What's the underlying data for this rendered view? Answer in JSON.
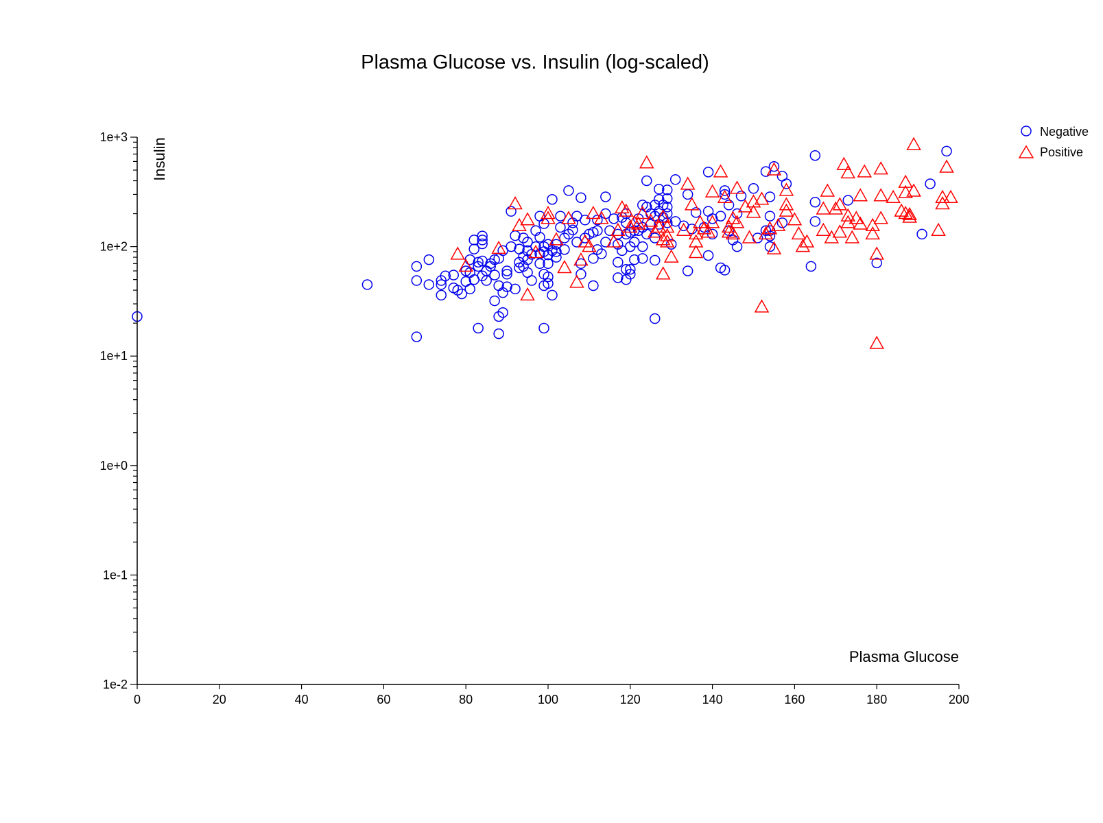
{
  "chart_data": {
    "type": "scatter",
    "title": "Plasma Glucose vs. Insulin (log-scaled)",
    "xlabel": "Plasma Glucose",
    "ylabel": "Insulin",
    "xlim": [
      0,
      200
    ],
    "ylim": [
      0.01,
      1000
    ],
    "y_scale": "log",
    "x_ticks": [
      0,
      20,
      40,
      60,
      80,
      100,
      120,
      140,
      160,
      180,
      200
    ],
    "y_ticks": [
      {
        "value": 0.01,
        "label": "1e-2"
      },
      {
        "value": 0.1,
        "label": "1e-1"
      },
      {
        "value": 1,
        "label": "1e+0"
      },
      {
        "value": 10,
        "label": "1e+1"
      },
      {
        "value": 100,
        "label": "1e+2"
      },
      {
        "value": 1000,
        "label": "1e+3"
      }
    ],
    "grid": false,
    "legend_position": "top-right",
    "series": [
      {
        "name": "Negative",
        "marker": "circle",
        "color": "#0000ee",
        "points": [
          [
            0,
            23
          ],
          [
            56,
            45
          ],
          [
            68,
            66
          ],
          [
            68,
            49
          ],
          [
            68,
            15
          ],
          [
            71,
            76
          ],
          [
            71,
            45
          ],
          [
            74,
            45
          ],
          [
            74,
            36
          ],
          [
            74,
            49
          ],
          [
            75,
            54
          ],
          [
            77,
            55
          ],
          [
            77,
            42
          ],
          [
            78,
            40
          ],
          [
            79,
            37
          ],
          [
            80,
            60
          ],
          [
            80,
            48
          ],
          [
            81,
            41
          ],
          [
            81,
            58
          ],
          [
            81,
            76
          ],
          [
            82,
            95
          ],
          [
            82,
            115
          ],
          [
            82,
            50
          ],
          [
            83,
            72
          ],
          [
            83,
            66
          ],
          [
            83,
            18
          ],
          [
            84,
            125
          ],
          [
            84,
            115
          ],
          [
            84,
            106
          ],
          [
            84,
            74
          ],
          [
            84,
            54
          ],
          [
            85,
            49
          ],
          [
            85,
            60
          ],
          [
            86,
            70
          ],
          [
            86,
            66
          ],
          [
            87,
            76
          ],
          [
            87,
            55
          ],
          [
            87,
            32
          ],
          [
            88,
            78
          ],
          [
            88,
            44
          ],
          [
            88,
            23
          ],
          [
            88,
            16
          ],
          [
            89,
            38
          ],
          [
            89,
            25
          ],
          [
            89,
            92
          ],
          [
            90,
            60
          ],
          [
            90,
            56
          ],
          [
            90,
            43
          ],
          [
            91,
            210
          ],
          [
            91,
            100
          ],
          [
            92,
            126
          ],
          [
            92,
            41
          ],
          [
            93,
            95
          ],
          [
            93,
            72
          ],
          [
            93,
            64
          ],
          [
            94,
            120
          ],
          [
            94,
            81
          ],
          [
            94,
            66
          ],
          [
            95,
            110
          ],
          [
            95,
            92
          ],
          [
            95,
            76
          ],
          [
            95,
            58
          ],
          [
            96,
            85
          ],
          [
            96,
            49
          ],
          [
            97,
            140
          ],
          [
            97,
            100
          ],
          [
            98,
            190
          ],
          [
            98,
            122
          ],
          [
            98,
            86
          ],
          [
            98,
            70
          ],
          [
            99,
            162
          ],
          [
            99,
            100
          ],
          [
            99,
            90
          ],
          [
            99,
            56
          ],
          [
            99,
            44
          ],
          [
            99,
            18
          ],
          [
            100,
            105
          ],
          [
            100,
            84
          ],
          [
            100,
            70
          ],
          [
            100,
            53
          ],
          [
            100,
            46
          ],
          [
            101,
            270
          ],
          [
            101,
            92
          ],
          [
            101,
            36
          ],
          [
            102,
            105
          ],
          [
            102,
            90
          ],
          [
            102,
            80
          ],
          [
            103,
            190
          ],
          [
            103,
            150
          ],
          [
            104,
            120
          ],
          [
            104,
            94
          ],
          [
            105,
            325
          ],
          [
            105,
            130
          ],
          [
            106,
            165
          ],
          [
            106,
            142
          ],
          [
            107,
            190
          ],
          [
            107,
            110
          ],
          [
            108,
            280
          ],
          [
            108,
            70
          ],
          [
            108,
            56
          ],
          [
            109,
            175
          ],
          [
            109,
            120
          ],
          [
            110,
            130
          ],
          [
            111,
            135
          ],
          [
            111,
            78
          ],
          [
            111,
            44
          ],
          [
            112,
            175
          ],
          [
            112,
            140
          ],
          [
            112,
            94
          ],
          [
            113,
            86
          ],
          [
            114,
            285
          ],
          [
            114,
            200
          ],
          [
            114,
            110
          ],
          [
            115,
            140
          ],
          [
            116,
            180
          ],
          [
            117,
            130
          ],
          [
            117,
            105
          ],
          [
            117,
            72
          ],
          [
            117,
            52
          ],
          [
            118,
            185
          ],
          [
            118,
            92
          ],
          [
            119,
            200
          ],
          [
            119,
            165
          ],
          [
            119,
            130
          ],
          [
            119,
            62
          ],
          [
            119,
            50
          ],
          [
            120,
            135
          ],
          [
            120,
            100
          ],
          [
            120,
            62
          ],
          [
            120,
            56
          ],
          [
            121,
            140
          ],
          [
            121,
            110
          ],
          [
            121,
            76
          ],
          [
            122,
            180
          ],
          [
            122,
            140
          ],
          [
            123,
            240
          ],
          [
            123,
            150
          ],
          [
            123,
            100
          ],
          [
            123,
            78
          ],
          [
            124,
            400
          ],
          [
            124,
            230
          ],
          [
            124,
            130
          ],
          [
            125,
            200
          ],
          [
            125,
            160
          ],
          [
            126,
            240
          ],
          [
            126,
            190
          ],
          [
            126,
            120
          ],
          [
            126,
            75
          ],
          [
            126,
            22
          ],
          [
            127,
            335
          ],
          [
            127,
            270
          ],
          [
            127,
            210
          ],
          [
            127,
            160
          ],
          [
            128,
            240
          ],
          [
            128,
            185
          ],
          [
            129,
            330
          ],
          [
            129,
            275
          ],
          [
            129,
            230
          ],
          [
            129,
            200
          ],
          [
            129,
            165
          ],
          [
            130,
            105
          ],
          [
            131,
            410
          ],
          [
            131,
            170
          ],
          [
            133,
            155
          ],
          [
            134,
            300
          ],
          [
            134,
            60
          ],
          [
            135,
            145
          ],
          [
            136,
            205
          ],
          [
            138,
            150
          ],
          [
            139,
            480
          ],
          [
            139,
            210
          ],
          [
            139,
            83
          ],
          [
            140,
            180
          ],
          [
            140,
            130
          ],
          [
            142,
            190
          ],
          [
            142,
            64
          ],
          [
            143,
            325
          ],
          [
            143,
            300
          ],
          [
            143,
            61
          ],
          [
            144,
            240
          ],
          [
            144,
            140
          ],
          [
            145,
            115
          ],
          [
            146,
            200
          ],
          [
            146,
            100
          ],
          [
            147,
            290
          ],
          [
            150,
            340
          ],
          [
            151,
            120
          ],
          [
            153,
            485
          ],
          [
            153,
            140
          ],
          [
            154,
            285
          ],
          [
            154,
            190
          ],
          [
            154,
            140
          ],
          [
            154,
            125
          ],
          [
            154,
            100
          ],
          [
            155,
            540
          ],
          [
            157,
            440
          ],
          [
            157,
            165
          ],
          [
            158,
            375
          ],
          [
            164,
            66
          ],
          [
            165,
            680
          ],
          [
            165,
            255
          ],
          [
            165,
            170
          ],
          [
            173,
            265
          ],
          [
            180,
            71
          ],
          [
            191,
            130
          ],
          [
            193,
            375
          ],
          [
            197,
            745
          ]
        ]
      },
      {
        "name": "Positive",
        "marker": "triangle",
        "color": "#ff0000",
        "points": [
          [
            78,
            85
          ],
          [
            80,
            66
          ],
          [
            88,
            96
          ],
          [
            92,
            245
          ],
          [
            93,
            155
          ],
          [
            95,
            175
          ],
          [
            95,
            36
          ],
          [
            97,
            88
          ],
          [
            100,
            200
          ],
          [
            100,
            180
          ],
          [
            102,
            115
          ],
          [
            104,
            64
          ],
          [
            105,
            180
          ],
          [
            107,
            47
          ],
          [
            108,
            75
          ],
          [
            109,
            110
          ],
          [
            110,
            100
          ],
          [
            111,
            200
          ],
          [
            113,
            180
          ],
          [
            116,
            110
          ],
          [
            117,
            140
          ],
          [
            118,
            225
          ],
          [
            119,
            210
          ],
          [
            120,
            150
          ],
          [
            121,
            165
          ],
          [
            122,
            160
          ],
          [
            123,
            200
          ],
          [
            124,
            580
          ],
          [
            125,
            170
          ],
          [
            126,
            135
          ],
          [
            127,
            150
          ],
          [
            128,
            56
          ],
          [
            128,
            185
          ],
          [
            128,
            115
          ],
          [
            129,
            150
          ],
          [
            129,
            125
          ],
          [
            129,
            110
          ],
          [
            130,
            80
          ],
          [
            133,
            140
          ],
          [
            134,
            370
          ],
          [
            135,
            240
          ],
          [
            136,
            130
          ],
          [
            136,
            110
          ],
          [
            136,
            88
          ],
          [
            137,
            165
          ],
          [
            138,
            145
          ],
          [
            139,
            135
          ],
          [
            140,
            315
          ],
          [
            140,
            165
          ],
          [
            142,
            480
          ],
          [
            143,
            280
          ],
          [
            144,
            150
          ],
          [
            144,
            135
          ],
          [
            145,
            130
          ],
          [
            145,
            180
          ],
          [
            146,
            165
          ],
          [
            146,
            340
          ],
          [
            148,
            230
          ],
          [
            149,
            120
          ],
          [
            150,
            255
          ],
          [
            150,
            205
          ],
          [
            152,
            270
          ],
          [
            152,
            28
          ],
          [
            153,
            130
          ],
          [
            154,
            145
          ],
          [
            155,
            500
          ],
          [
            155,
            95
          ],
          [
            156,
            155
          ],
          [
            158,
            325
          ],
          [
            158,
            240
          ],
          [
            158,
            210
          ],
          [
            160,
            175
          ],
          [
            161,
            130
          ],
          [
            162,
            100
          ],
          [
            163,
            110
          ],
          [
            167,
            220
          ],
          [
            167,
            140
          ],
          [
            168,
            320
          ],
          [
            169,
            120
          ],
          [
            170,
            220
          ],
          [
            171,
            240
          ],
          [
            171,
            135
          ],
          [
            172,
            560
          ],
          [
            173,
            470
          ],
          [
            173,
            190
          ],
          [
            173,
            165
          ],
          [
            174,
            120
          ],
          [
            175,
            180
          ],
          [
            176,
            160
          ],
          [
            176,
            290
          ],
          [
            177,
            480
          ],
          [
            179,
            155
          ],
          [
            179,
            130
          ],
          [
            180,
            85
          ],
          [
            180,
            13
          ],
          [
            181,
            510
          ],
          [
            181,
            290
          ],
          [
            181,
            180
          ],
          [
            184,
            280
          ],
          [
            186,
            210
          ],
          [
            187,
            200
          ],
          [
            187,
            385
          ],
          [
            187,
            310
          ],
          [
            188,
            185
          ],
          [
            188,
            195
          ],
          [
            189,
            320
          ],
          [
            189,
            850
          ],
          [
            195,
            140
          ],
          [
            196,
            280
          ],
          [
            196,
            245
          ],
          [
            197,
            530
          ],
          [
            198,
            280
          ]
        ]
      }
    ]
  }
}
